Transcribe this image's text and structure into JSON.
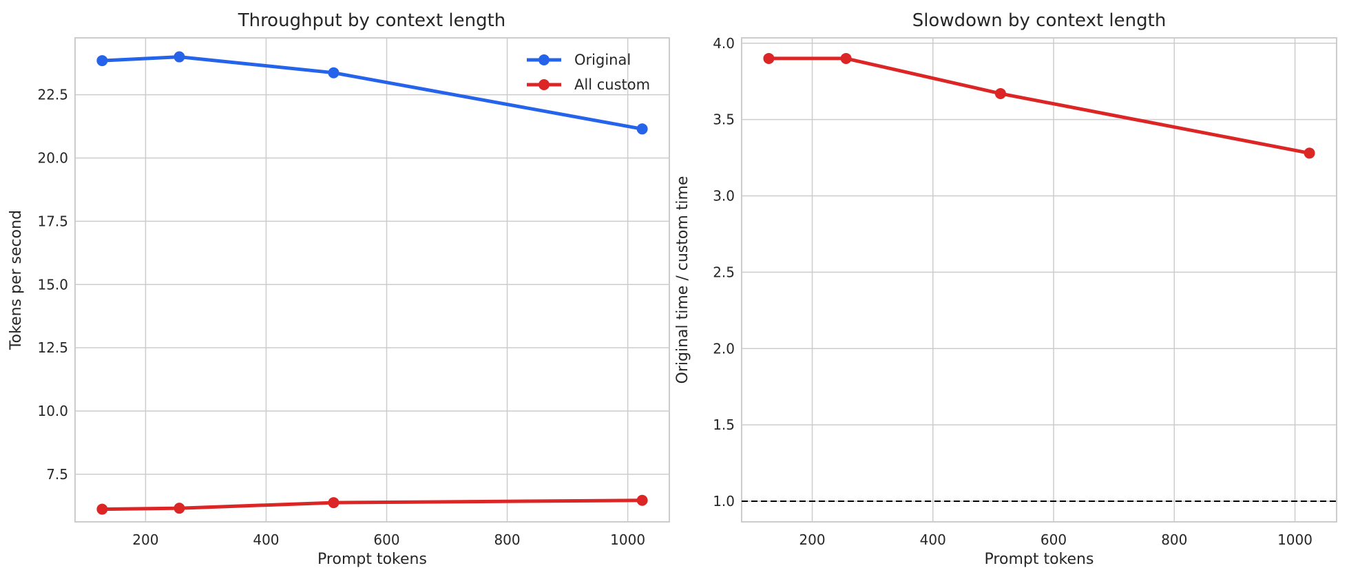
{
  "chart_data": [
    {
      "type": "line",
      "title": "Throughput by context length",
      "xlabel": "Prompt tokens",
      "ylabel": "Tokens per second",
      "x": [
        128,
        256,
        512,
        1024
      ],
      "xlim": [
        83,
        1069
      ],
      "ylim": [
        5.62,
        24.75
      ],
      "xticks": [
        200,
        400,
        600,
        800,
        1000
      ],
      "yticks": [
        7.5,
        10.0,
        12.5,
        15.0,
        17.5,
        20.0,
        22.5
      ],
      "grid": true,
      "legend": "top-right",
      "series": [
        {
          "name": "Original",
          "color": "#2563eb",
          "values": [
            23.85,
            24.0,
            23.37,
            21.15
          ]
        },
        {
          "name": "All custom",
          "color": "#dc2626",
          "values": [
            6.12,
            6.16,
            6.38,
            6.47
          ]
        }
      ]
    },
    {
      "type": "line",
      "title": "Slowdown by context length",
      "xlabel": "Prompt tokens",
      "ylabel": "Original time / custom time",
      "x": [
        128,
        256,
        512,
        1024
      ],
      "xlim": [
        83,
        1069
      ],
      "ylim": [
        0.865,
        4.035
      ],
      "xticks": [
        200,
        400,
        600,
        800,
        1000
      ],
      "yticks": [
        1.0,
        1.5,
        2.0,
        2.5,
        3.0,
        3.5,
        4.0
      ],
      "grid": true,
      "reference_line": {
        "y": 1.0,
        "style": "dashed",
        "color": "#000000"
      },
      "series": [
        {
          "color": "#dc2626",
          "values": [
            3.9,
            3.9,
            3.67,
            3.28
          ]
        }
      ]
    }
  ]
}
